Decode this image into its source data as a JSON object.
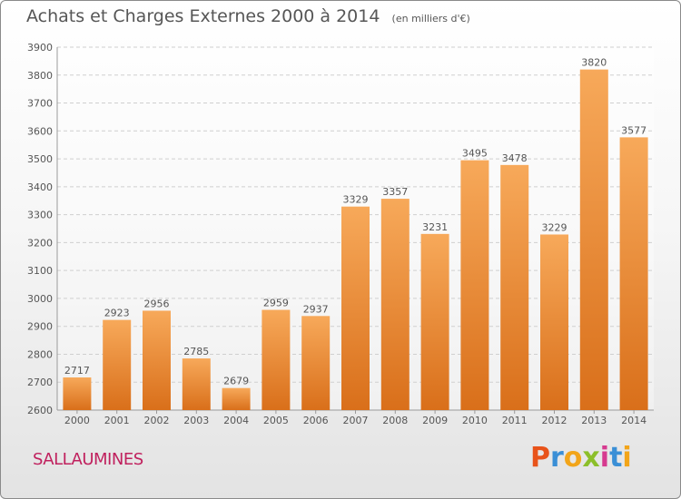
{
  "title": "Achats et Charges Externes 2000 à 2014",
  "subtitle": "(en milliers d'€)",
  "commune": "SALLAUMINES",
  "brand": {
    "letters": [
      "P",
      "r",
      "o",
      "x",
      "i",
      "t",
      "i"
    ],
    "colors": [
      "#e8531a",
      "#3a8fd6",
      "#f2a51a",
      "#8cbf2a",
      "#d63a8f",
      "#3a8fd6",
      "#f2a51a"
    ]
  },
  "colors": {
    "bar_light": "#f7a95a",
    "bar_dark": "#d96f1a",
    "axis_text": "#555555",
    "grid": "#cfcfcf"
  },
  "chart_data": {
    "type": "bar",
    "title": "Achats et Charges Externes 2000 à 2014",
    "subtitle": "(en milliers d'€)",
    "categories": [
      "2000",
      "2001",
      "2002",
      "2003",
      "2004",
      "2005",
      "2006",
      "2007",
      "2008",
      "2009",
      "2010",
      "2011",
      "2012",
      "2013",
      "2014"
    ],
    "values": [
      2717,
      2923,
      2956,
      2785,
      2679,
      2959,
      2937,
      3329,
      3357,
      3231,
      3495,
      3478,
      3229,
      3820,
      3577
    ],
    "ylim": [
      2600,
      3900
    ],
    "yticks": [
      2600,
      2700,
      2800,
      2900,
      3000,
      3100,
      3200,
      3300,
      3400,
      3500,
      3600,
      3700,
      3800,
      3900
    ],
    "grid": true,
    "xlabel": "",
    "ylabel": ""
  }
}
